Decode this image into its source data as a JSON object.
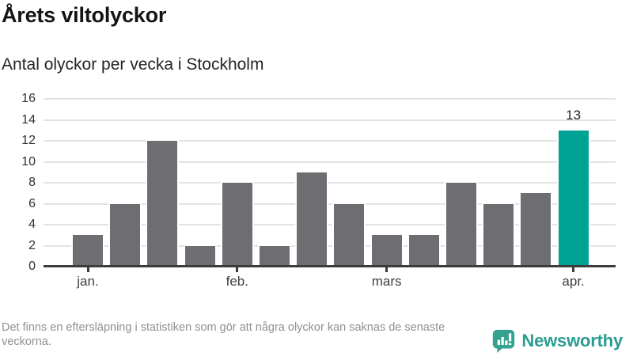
{
  "header": {
    "title": "Årets viltolyckor",
    "subtitle": "Antal olyckor per vecka i Stockholm"
  },
  "chart_data": {
    "type": "bar",
    "title": "Årets viltolyckor",
    "subtitle": "Antal olyckor per vecka i Stockholm",
    "values": [
      3,
      6,
      12,
      2,
      8,
      2,
      9,
      6,
      3,
      3,
      8,
      6,
      7,
      13
    ],
    "highlight_index": 13,
    "highlight_label": "13",
    "yticks": [
      0,
      2,
      4,
      6,
      8,
      10,
      12,
      14,
      16
    ],
    "ylim": [
      0,
      16
    ],
    "month_ticks": [
      {
        "bar_index": 0,
        "label": "jan."
      },
      {
        "bar_index": 4,
        "label": "feb."
      },
      {
        "bar_index": 8,
        "label": "mars"
      },
      {
        "bar_index": 13,
        "label": "apr."
      }
    ],
    "grid": true,
    "legend": "none",
    "colors": {
      "bar": "#6d6d72",
      "highlight": "#00a295",
      "gridline": "#e3e3e3",
      "axis": "#3c3c3c"
    }
  },
  "footer": {
    "note": "Det finns en eftersläpning i statistiken som gör att några olyckor kan saknas de senaste veckorna.",
    "brand": "Newsworthy",
    "brand_color": "#2a9d92"
  }
}
